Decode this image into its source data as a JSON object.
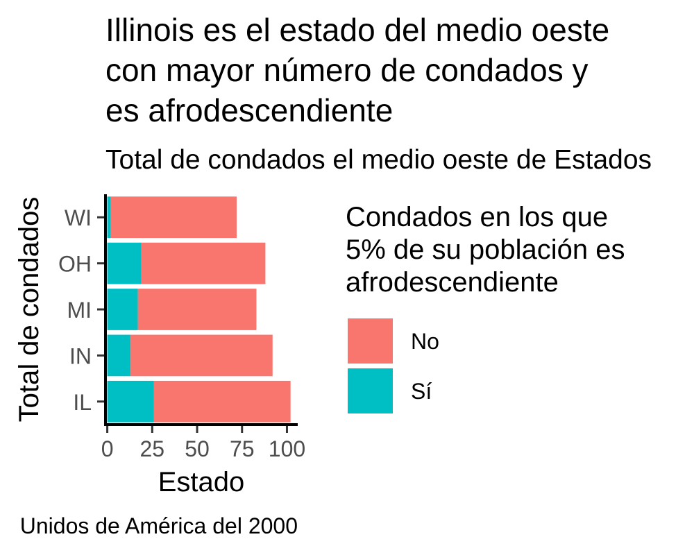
{
  "chart_data": {
    "type": "bar",
    "orientation": "horizontal",
    "stacked": true,
    "title_lines": [
      "Illinois es el estado del medio oeste",
      "con mayor número de condados y",
      "es afrodescendiente"
    ],
    "subtitle": "Total de condados el medio oeste de Estados",
    "caption": "Unidos de América del 2000",
    "xlabel": "Estado",
    "ylabel": "Total de condados",
    "categories": [
      "IL",
      "IN",
      "MI",
      "OH",
      "WI"
    ],
    "xlim": [
      -1,
      106
    ],
    "x_ticks": [
      0,
      25,
      50,
      75,
      100
    ],
    "x_tick_labels": [
      "0",
      "25",
      "50",
      "75",
      "100"
    ],
    "series": [
      {
        "name": "Sí",
        "color": "#00BFC4",
        "values": [
          26,
          13,
          17,
          19,
          2
        ]
      },
      {
        "name": "No",
        "color": "#F8766D",
        "values": [
          76,
          79,
          66,
          69,
          70
        ]
      }
    ],
    "legend": {
      "title_lines": [
        "Condados en los que",
        "5% de su población es",
        "afrodescendiente"
      ],
      "placement": "right",
      "items": [
        {
          "label": "No",
          "color": "#F8766D"
        },
        {
          "label": "Sí",
          "color": "#00BFC4"
        }
      ]
    },
    "grid": false
  }
}
